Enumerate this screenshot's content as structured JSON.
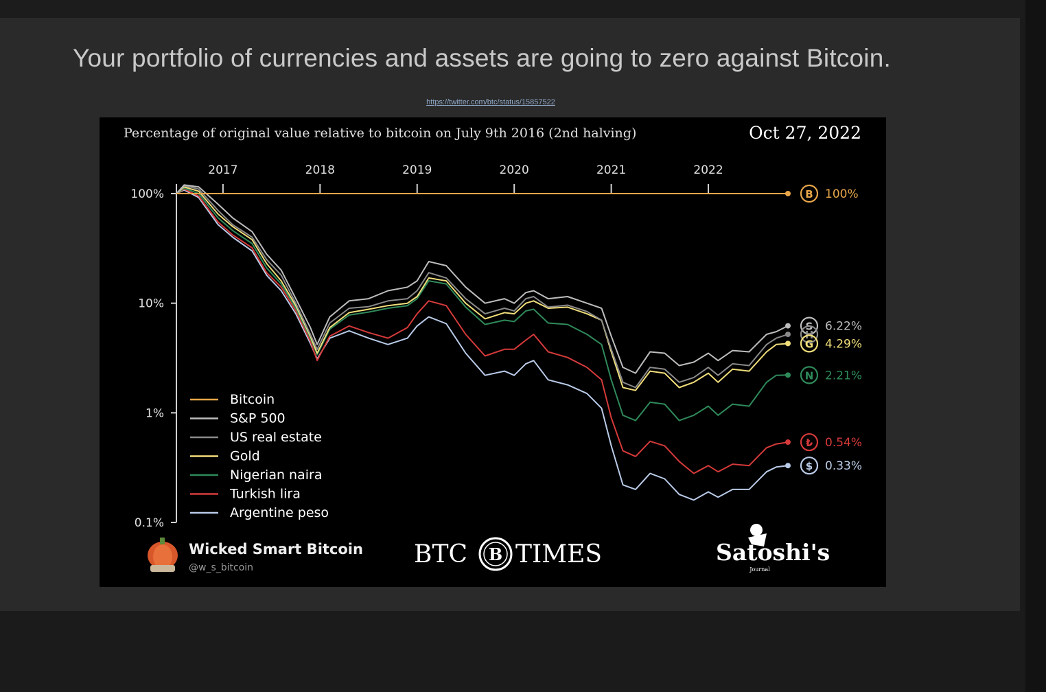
{
  "slide": {
    "title": "Your portfolio of currencies and assets are going to zero against Bitcoin.",
    "source_link": "https://twitter.com/btc/status/15857522"
  },
  "chart_data": {
    "type": "line",
    "title": "Percentage of original value relative to bitcoin on July 9th 2016 (2nd halving)",
    "date": "Oct 27, 2022",
    "x_ticks": [
      "2017",
      "2018",
      "2019",
      "2020",
      "2021",
      "2022"
    ],
    "xlim": [
      2016.52,
      2022.82
    ],
    "y_scale": "log",
    "y_ticks": [
      "100%",
      "10%",
      "1%",
      "0.1%"
    ],
    "ylim": [
      0.1,
      100
    ],
    "legend_position": "bottom-left",
    "grid": false,
    "series": [
      {
        "name": "Bitcoin",
        "color": "#e8a64a",
        "end_label": "100%",
        "icon": "bitcoin-icon",
        "icon_glyph": "B",
        "points": [
          [
            2016.52,
            100
          ],
          [
            2022.82,
            100
          ]
        ]
      },
      {
        "name": "S&P 500",
        "color": "#bdbdbd",
        "end_label": "6.22%",
        "icon": "sp500-icon",
        "icon_glyph": "S",
        "points": [
          [
            2016.52,
            100
          ],
          [
            2016.6,
            120
          ],
          [
            2016.75,
            115
          ],
          [
            2016.95,
            80
          ],
          [
            2017.1,
            60
          ],
          [
            2017.3,
            45
          ],
          [
            2017.45,
            28
          ],
          [
            2017.6,
            20
          ],
          [
            2017.75,
            11
          ],
          [
            2017.9,
            6
          ],
          [
            2017.97,
            4.2
          ],
          [
            2018.1,
            7.5
          ],
          [
            2018.3,
            10.5
          ],
          [
            2018.5,
            11
          ],
          [
            2018.7,
            13
          ],
          [
            2018.9,
            14
          ],
          [
            2019.0,
            16
          ],
          [
            2019.12,
            24
          ],
          [
            2019.3,
            22
          ],
          [
            2019.5,
            14
          ],
          [
            2019.7,
            10
          ],
          [
            2019.9,
            11
          ],
          [
            2020.0,
            10
          ],
          [
            2020.12,
            12.5
          ],
          [
            2020.2,
            13
          ],
          [
            2020.35,
            11
          ],
          [
            2020.55,
            11.5
          ],
          [
            2020.75,
            10
          ],
          [
            2020.9,
            9
          ],
          [
            2021.0,
            5
          ],
          [
            2021.12,
            2.6
          ],
          [
            2021.25,
            2.3
          ],
          [
            2021.4,
            3.6
          ],
          [
            2021.55,
            3.5
          ],
          [
            2021.7,
            2.7
          ],
          [
            2021.85,
            2.9
          ],
          [
            2022.0,
            3.5
          ],
          [
            2022.1,
            3.0
          ],
          [
            2022.25,
            3.7
          ],
          [
            2022.42,
            3.6
          ],
          [
            2022.6,
            5.2
          ],
          [
            2022.7,
            5.5
          ],
          [
            2022.82,
            6.22
          ]
        ]
      },
      {
        "name": "US real estate",
        "color": "#8a8a8a",
        "end_label": "",
        "icon": "house-icon",
        "icon_glyph": "H",
        "points": [
          [
            2016.52,
            100
          ],
          [
            2016.6,
            118
          ],
          [
            2016.75,
            110
          ],
          [
            2016.95,
            70
          ],
          [
            2017.1,
            52
          ],
          [
            2017.3,
            40
          ],
          [
            2017.45,
            25
          ],
          [
            2017.6,
            18
          ],
          [
            2017.75,
            10
          ],
          [
            2017.9,
            5.2
          ],
          [
            2017.97,
            3.8
          ],
          [
            2018.1,
            6.6
          ],
          [
            2018.3,
            9
          ],
          [
            2018.5,
            9.3
          ],
          [
            2018.7,
            10.5
          ],
          [
            2018.9,
            11
          ],
          [
            2019.0,
            13
          ],
          [
            2019.12,
            19
          ],
          [
            2019.3,
            17
          ],
          [
            2019.5,
            11
          ],
          [
            2019.7,
            8
          ],
          [
            2019.9,
            9
          ],
          [
            2020.0,
            8.5
          ],
          [
            2020.12,
            11
          ],
          [
            2020.2,
            11.5
          ],
          [
            2020.35,
            9.2
          ],
          [
            2020.55,
            9.6
          ],
          [
            2020.75,
            8.4
          ],
          [
            2020.9,
            7
          ],
          [
            2021.0,
            3.8
          ],
          [
            2021.12,
            1.9
          ],
          [
            2021.25,
            1.7
          ],
          [
            2021.4,
            2.6
          ],
          [
            2021.55,
            2.5
          ],
          [
            2021.7,
            1.9
          ],
          [
            2021.85,
            2.1
          ],
          [
            2022.0,
            2.6
          ],
          [
            2022.1,
            2.2
          ],
          [
            2022.25,
            2.8
          ],
          [
            2022.42,
            2.7
          ],
          [
            2022.6,
            4.2
          ],
          [
            2022.7,
            4.8
          ],
          [
            2022.82,
            5.2
          ]
        ]
      },
      {
        "name": "Gold",
        "color": "#f1de7a",
        "end_label": "4.29%",
        "icon": "gold-icon",
        "icon_glyph": "G",
        "points": [
          [
            2016.52,
            100
          ],
          [
            2016.6,
            115
          ],
          [
            2016.75,
            105
          ],
          [
            2016.95,
            65
          ],
          [
            2017.1,
            50
          ],
          [
            2017.3,
            38
          ],
          [
            2017.45,
            23
          ],
          [
            2017.6,
            16
          ],
          [
            2017.75,
            9.5
          ],
          [
            2017.9,
            5
          ],
          [
            2017.97,
            3.5
          ],
          [
            2018.1,
            6
          ],
          [
            2018.3,
            8.2
          ],
          [
            2018.5,
            8.8
          ],
          [
            2018.7,
            9.5
          ],
          [
            2018.9,
            10
          ],
          [
            2019.0,
            11.5
          ],
          [
            2019.12,
            17
          ],
          [
            2019.3,
            16
          ],
          [
            2019.5,
            10
          ],
          [
            2019.7,
            7.2
          ],
          [
            2019.9,
            8.2
          ],
          [
            2020.0,
            8
          ],
          [
            2020.12,
            10
          ],
          [
            2020.2,
            10.5
          ],
          [
            2020.35,
            9
          ],
          [
            2020.55,
            9.2
          ],
          [
            2020.75,
            8
          ],
          [
            2020.9,
            7
          ],
          [
            2021.0,
            3.6
          ],
          [
            2021.12,
            1.7
          ],
          [
            2021.25,
            1.6
          ],
          [
            2021.4,
            2.4
          ],
          [
            2021.55,
            2.3
          ],
          [
            2021.7,
            1.7
          ],
          [
            2021.85,
            1.9
          ],
          [
            2022.0,
            2.3
          ],
          [
            2022.1,
            1.9
          ],
          [
            2022.25,
            2.5
          ],
          [
            2022.42,
            2.4
          ],
          [
            2022.6,
            3.6
          ],
          [
            2022.7,
            4.2
          ],
          [
            2022.82,
            4.29
          ]
        ]
      },
      {
        "name": "Nigerian naira",
        "color": "#2f8a5a",
        "end_label": "2.21%",
        "icon": "naira-icon",
        "icon_glyph": "N",
        "points": [
          [
            2016.52,
            100
          ],
          [
            2016.6,
            112
          ],
          [
            2016.75,
            100
          ],
          [
            2016.95,
            60
          ],
          [
            2017.1,
            46
          ],
          [
            2017.3,
            35
          ],
          [
            2017.45,
            21
          ],
          [
            2017.6,
            15
          ],
          [
            2017.75,
            9
          ],
          [
            2017.9,
            4.8
          ],
          [
            2017.97,
            3.4
          ],
          [
            2018.1,
            5.8
          ],
          [
            2018.3,
            7.8
          ],
          [
            2018.5,
            8.3
          ],
          [
            2018.7,
            9
          ],
          [
            2018.9,
            9.5
          ],
          [
            2019.0,
            11
          ],
          [
            2019.12,
            16
          ],
          [
            2019.3,
            15
          ],
          [
            2019.5,
            9.2
          ],
          [
            2019.7,
            6.4
          ],
          [
            2019.9,
            7
          ],
          [
            2020.0,
            6.8
          ],
          [
            2020.12,
            8.5
          ],
          [
            2020.2,
            8.8
          ],
          [
            2020.35,
            6.6
          ],
          [
            2020.55,
            6.4
          ],
          [
            2020.75,
            5.2
          ],
          [
            2020.9,
            4.2
          ],
          [
            2021.0,
            2
          ],
          [
            2021.12,
            0.95
          ],
          [
            2021.25,
            0.85
          ],
          [
            2021.4,
            1.25
          ],
          [
            2021.55,
            1.2
          ],
          [
            2021.7,
            0.85
          ],
          [
            2021.85,
            0.95
          ],
          [
            2022.0,
            1.15
          ],
          [
            2022.1,
            0.95
          ],
          [
            2022.25,
            1.2
          ],
          [
            2022.42,
            1.15
          ],
          [
            2022.6,
            1.9
          ],
          [
            2022.7,
            2.2
          ],
          [
            2022.82,
            2.21
          ]
        ]
      },
      {
        "name": "Turkish lira",
        "color": "#d63a3a",
        "end_label": "0.54%",
        "icon": "lira-icon",
        "icon_glyph": "₺",
        "points": [
          [
            2016.52,
            100
          ],
          [
            2016.6,
            110
          ],
          [
            2016.75,
            95
          ],
          [
            2016.95,
            55
          ],
          [
            2017.1,
            42
          ],
          [
            2017.3,
            32
          ],
          [
            2017.45,
            19
          ],
          [
            2017.6,
            14
          ],
          [
            2017.75,
            8.5
          ],
          [
            2017.9,
            4.5
          ],
          [
            2017.97,
            3.0
          ],
          [
            2018.1,
            5
          ],
          [
            2018.3,
            6.2
          ],
          [
            2018.5,
            5.4
          ],
          [
            2018.7,
            4.8
          ],
          [
            2018.9,
            6
          ],
          [
            2019.0,
            8
          ],
          [
            2019.12,
            10.5
          ],
          [
            2019.3,
            9.5
          ],
          [
            2019.5,
            5.2
          ],
          [
            2019.7,
            3.3
          ],
          [
            2019.9,
            3.8
          ],
          [
            2020.0,
            3.8
          ],
          [
            2020.12,
            4.6
          ],
          [
            2020.2,
            5.2
          ],
          [
            2020.35,
            3.6
          ],
          [
            2020.55,
            3.2
          ],
          [
            2020.75,
            2.6
          ],
          [
            2020.9,
            2
          ],
          [
            2021.0,
            0.9
          ],
          [
            2021.12,
            0.45
          ],
          [
            2021.25,
            0.4
          ],
          [
            2021.4,
            0.55
          ],
          [
            2021.55,
            0.5
          ],
          [
            2021.7,
            0.36
          ],
          [
            2021.85,
            0.28
          ],
          [
            2022.0,
            0.33
          ],
          [
            2022.1,
            0.29
          ],
          [
            2022.25,
            0.34
          ],
          [
            2022.42,
            0.33
          ],
          [
            2022.6,
            0.48
          ],
          [
            2022.7,
            0.52
          ],
          [
            2022.82,
            0.54
          ]
        ]
      },
      {
        "name": "Argentine peso",
        "color": "#b9cbe8",
        "end_label": "0.33%",
        "icon": "peso-icon",
        "icon_glyph": "$",
        "points": [
          [
            2016.52,
            100
          ],
          [
            2016.6,
            108
          ],
          [
            2016.75,
            92
          ],
          [
            2016.95,
            52
          ],
          [
            2017.1,
            40
          ],
          [
            2017.3,
            30
          ],
          [
            2017.45,
            18
          ],
          [
            2017.6,
            13
          ],
          [
            2017.75,
            8
          ],
          [
            2017.9,
            4.3
          ],
          [
            2017.97,
            3.1
          ],
          [
            2018.1,
            4.8
          ],
          [
            2018.3,
            5.6
          ],
          [
            2018.5,
            4.8
          ],
          [
            2018.7,
            4.2
          ],
          [
            2018.9,
            4.8
          ],
          [
            2019.0,
            6.2
          ],
          [
            2019.12,
            7.5
          ],
          [
            2019.3,
            6.5
          ],
          [
            2019.5,
            3.5
          ],
          [
            2019.7,
            2.2
          ],
          [
            2019.9,
            2.4
          ],
          [
            2020.0,
            2.2
          ],
          [
            2020.12,
            2.8
          ],
          [
            2020.2,
            3
          ],
          [
            2020.35,
            2
          ],
          [
            2020.55,
            1.8
          ],
          [
            2020.75,
            1.5
          ],
          [
            2020.9,
            1.1
          ],
          [
            2021.0,
            0.5
          ],
          [
            2021.12,
            0.22
          ],
          [
            2021.25,
            0.2
          ],
          [
            2021.4,
            0.28
          ],
          [
            2021.55,
            0.25
          ],
          [
            2021.7,
            0.18
          ],
          [
            2021.85,
            0.16
          ],
          [
            2022.0,
            0.19
          ],
          [
            2022.1,
            0.17
          ],
          [
            2022.25,
            0.2
          ],
          [
            2022.42,
            0.2
          ],
          [
            2022.6,
            0.29
          ],
          [
            2022.7,
            0.32
          ],
          [
            2022.82,
            0.33
          ]
        ]
      }
    ]
  },
  "footer": {
    "brand_name": "Wicked Smart Bitcoin",
    "brand_handle": "@w_s_bitcoin",
    "center_logo_left": "BTC",
    "center_logo_glyph": "B",
    "center_logo_right": "TIMES",
    "right_logo": "Satoshi's",
    "right_logo_sub": "Journal"
  }
}
